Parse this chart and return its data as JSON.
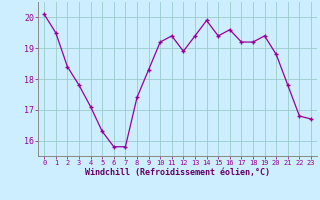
{
  "x": [
    0,
    1,
    2,
    3,
    4,
    5,
    6,
    7,
    8,
    9,
    10,
    11,
    12,
    13,
    14,
    15,
    16,
    17,
    18,
    19,
    20,
    21,
    22,
    23
  ],
  "y": [
    20.1,
    19.5,
    18.4,
    17.8,
    17.1,
    16.3,
    15.8,
    15.8,
    17.4,
    18.3,
    19.2,
    19.4,
    18.9,
    19.4,
    19.9,
    19.4,
    19.6,
    19.2,
    19.2,
    19.4,
    18.8,
    17.8,
    16.8,
    16.7
  ],
  "line_color": "#990099",
  "marker": "+",
  "background_color": "#cceeff",
  "grid_color": "#99cccc",
  "xlabel": "Windchill (Refroidissement éolien,°C)",
  "xlabel_color": "#660066",
  "tick_color": "#990099",
  "ylim": [
    15.5,
    20.5
  ],
  "xlim": [
    -0.5,
    23.5
  ],
  "yticks": [
    16,
    17,
    18,
    19,
    20
  ],
  "xticks": [
    0,
    1,
    2,
    3,
    4,
    5,
    6,
    7,
    8,
    9,
    10,
    11,
    12,
    13,
    14,
    15,
    16,
    17,
    18,
    19,
    20,
    21,
    22,
    23
  ]
}
